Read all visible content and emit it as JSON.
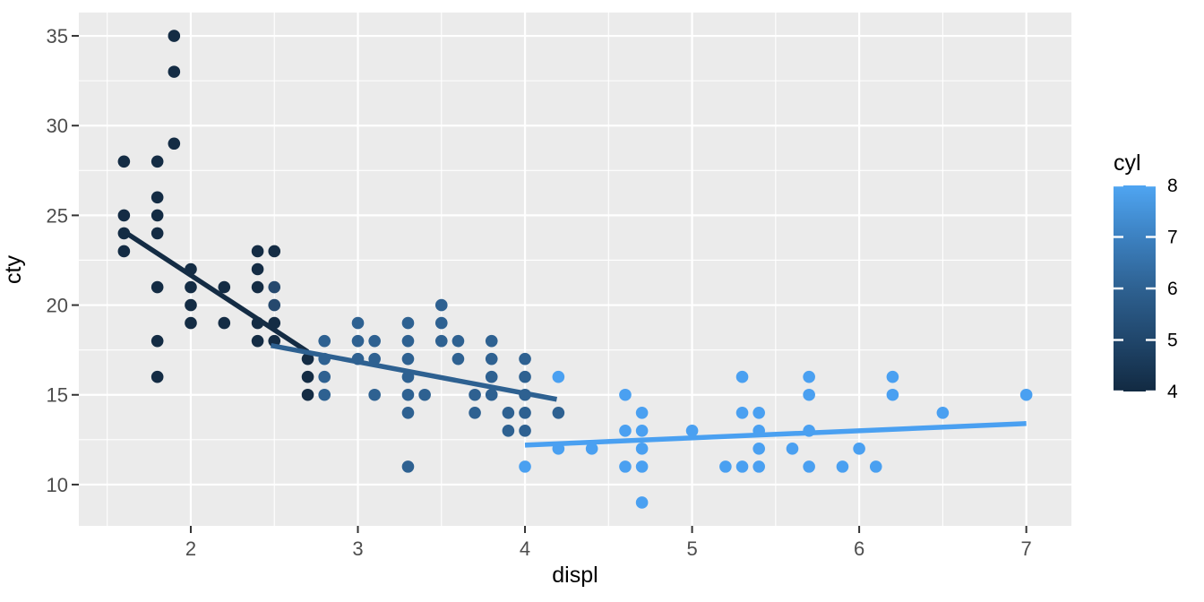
{
  "chart_data": {
    "type": "scatter",
    "title": "",
    "xlabel": "displ",
    "ylabel": "cty",
    "xlim": [
      1.33,
      7.27
    ],
    "ylim": [
      7.7,
      36.3
    ],
    "x_ticks": [
      2,
      3,
      4,
      5,
      6,
      7
    ],
    "y_ticks": [
      10,
      15,
      20,
      25,
      30,
      35
    ],
    "x_minor": [
      1.5,
      2.5,
      3.5,
      4.5,
      5.5,
      6.5
    ],
    "y_minor": [
      12.5,
      17.5,
      22.5,
      27.5,
      32.5
    ],
    "grid": true,
    "panel_bg": "#EBEBEB",
    "grid_color": "#FFFFFF",
    "tick_mark_color": "#333333",
    "tick_label_color": "#4D4D4D",
    "color_map": {
      "4": "#142C44",
      "5": "#26496E",
      "6": "#2E6191",
      "8": "#4AA0F1"
    },
    "series": [
      {
        "name": "cyl 4",
        "cyl": 4,
        "points": [
          [
            1.6,
            23
          ],
          [
            1.6,
            24
          ],
          [
            1.6,
            25
          ],
          [
            1.6,
            28
          ],
          [
            1.8,
            16
          ],
          [
            1.8,
            18
          ],
          [
            1.8,
            21
          ],
          [
            1.8,
            24
          ],
          [
            1.8,
            25
          ],
          [
            1.8,
            26
          ],
          [
            1.8,
            28
          ],
          [
            1.9,
            29
          ],
          [
            1.9,
            33
          ],
          [
            1.9,
            35
          ],
          [
            2.0,
            19
          ],
          [
            2.0,
            20
          ],
          [
            2.0,
            21
          ],
          [
            2.0,
            22
          ],
          [
            2.2,
            19
          ],
          [
            2.2,
            21
          ],
          [
            2.4,
            18
          ],
          [
            2.4,
            19
          ],
          [
            2.4,
            21
          ],
          [
            2.4,
            22
          ],
          [
            2.4,
            23
          ],
          [
            2.5,
            18
          ],
          [
            2.5,
            19
          ],
          [
            2.5,
            23
          ],
          [
            2.7,
            15
          ],
          [
            2.7,
            16
          ],
          [
            2.7,
            17
          ]
        ]
      },
      {
        "name": "cyl 5",
        "cyl": 5,
        "points": [
          [
            2.5,
            20
          ],
          [
            2.5,
            21
          ]
        ]
      },
      {
        "name": "cyl 6",
        "cyl": 6,
        "points": [
          [
            2.8,
            15
          ],
          [
            2.8,
            16
          ],
          [
            2.8,
            17
          ],
          [
            2.8,
            18
          ],
          [
            3.0,
            17
          ],
          [
            3.0,
            18
          ],
          [
            3.0,
            19
          ],
          [
            3.1,
            15
          ],
          [
            3.1,
            17
          ],
          [
            3.1,
            18
          ],
          [
            3.3,
            11
          ],
          [
            3.3,
            14
          ],
          [
            3.3,
            15
          ],
          [
            3.3,
            16
          ],
          [
            3.3,
            17
          ],
          [
            3.3,
            18
          ],
          [
            3.3,
            19
          ],
          [
            3.4,
            15
          ],
          [
            3.5,
            18
          ],
          [
            3.5,
            19
          ],
          [
            3.5,
            20
          ],
          [
            3.6,
            17
          ],
          [
            3.6,
            18
          ],
          [
            3.7,
            14
          ],
          [
            3.7,
            15
          ],
          [
            3.8,
            15
          ],
          [
            3.8,
            16
          ],
          [
            3.8,
            17
          ],
          [
            3.8,
            18
          ],
          [
            3.9,
            13
          ],
          [
            3.9,
            14
          ],
          [
            4.0,
            13
          ],
          [
            4.0,
            14
          ],
          [
            4.0,
            15
          ],
          [
            4.0,
            16
          ],
          [
            4.0,
            17
          ],
          [
            4.2,
            14
          ]
        ]
      },
      {
        "name": "cyl 8",
        "cyl": 8,
        "points": [
          [
            4.0,
            11
          ],
          [
            4.2,
            12
          ],
          [
            4.2,
            16
          ],
          [
            4.4,
            12
          ],
          [
            4.6,
            11
          ],
          [
            4.6,
            13
          ],
          [
            4.6,
            15
          ],
          [
            4.7,
            9
          ],
          [
            4.7,
            11
          ],
          [
            4.7,
            12
          ],
          [
            4.7,
            13
          ],
          [
            4.7,
            14
          ],
          [
            5.0,
            13
          ],
          [
            5.2,
            11
          ],
          [
            5.3,
            11
          ],
          [
            5.3,
            14
          ],
          [
            5.3,
            16
          ],
          [
            5.4,
            11
          ],
          [
            5.4,
            12
          ],
          [
            5.4,
            13
          ],
          [
            5.4,
            14
          ],
          [
            5.6,
            12
          ],
          [
            5.7,
            11
          ],
          [
            5.7,
            13
          ],
          [
            5.7,
            15
          ],
          [
            5.7,
            16
          ],
          [
            5.9,
            11
          ],
          [
            6.0,
            12
          ],
          [
            6.1,
            11
          ],
          [
            6.2,
            15
          ],
          [
            6.2,
            16
          ],
          [
            6.5,
            14
          ],
          [
            7.0,
            15
          ]
        ]
      }
    ],
    "smooth_lines": [
      {
        "cyl": 4,
        "x1": 1.6,
        "y1": 24.1,
        "x2": 2.7,
        "y2": 17.4
      },
      {
        "cyl": 6,
        "x1": 2.48,
        "y1": 17.75,
        "x2": 4.19,
        "y2": 14.75
      },
      {
        "cyl": 8,
        "x1": 4.0,
        "y1": 12.2,
        "x2": 7.0,
        "y2": 13.4
      }
    ],
    "legend": {
      "title": "cyl",
      "breaks": [
        4,
        5,
        6,
        7,
        8
      ],
      "labels": [
        "4",
        "5",
        "6",
        "7",
        "8"
      ],
      "low_color": "#122A42",
      "high_color": "#4FA5F2",
      "gradient_stops": [
        {
          "value": 4,
          "color": "#122A42"
        },
        {
          "value": 5,
          "color": "#20466B"
        },
        {
          "value": 6,
          "color": "#2E6191"
        },
        {
          "value": 7,
          "color": "#3C81C1"
        },
        {
          "value": 8,
          "color": "#4FA5F2"
        }
      ],
      "label_color": "#000000"
    }
  }
}
